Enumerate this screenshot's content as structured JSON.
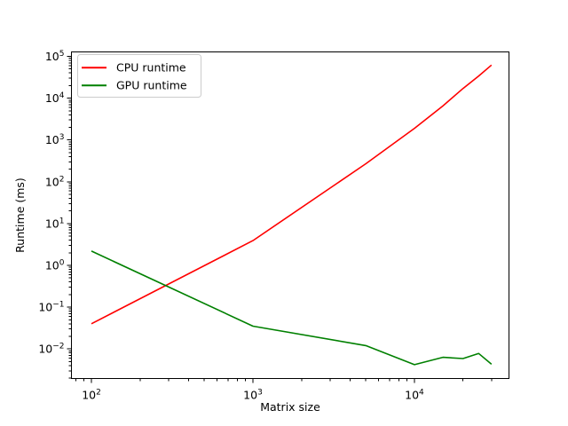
{
  "chart_data": {
    "type": "line",
    "title": "",
    "xlabel": "Matrix size",
    "ylabel": "Runtime (ms)",
    "x_scale": "log",
    "y_scale": "log",
    "xlim": [
      75.2,
      38500
    ],
    "ylim": [
      0.00196,
      127700
    ],
    "grid": false,
    "x": [
      100,
      1000,
      5000,
      10000,
      15000,
      20000,
      25000,
      30000
    ],
    "series": [
      {
        "name": "CPU runtime",
        "color": "#ff0000",
        "values": [
          0.04,
          3.9,
          270,
          1900,
          6500,
          17000,
          34000,
          62000
        ]
      },
      {
        "name": "GPU runtime",
        "color": "#008000",
        "values": [
          2.2,
          0.035,
          0.012,
          0.0042,
          0.0063,
          0.0059,
          0.0078,
          0.0043
        ]
      }
    ],
    "x_ticks": [
      {
        "value": 100,
        "base": "10",
        "exponent": "2"
      },
      {
        "value": 1000,
        "base": "10",
        "exponent": "3"
      },
      {
        "value": 10000,
        "base": "10",
        "exponent": "4"
      }
    ],
    "y_ticks": [
      {
        "value": 0.01,
        "base": "10",
        "exponent": "−2"
      },
      {
        "value": 0.1,
        "base": "10",
        "exponent": "−1"
      },
      {
        "value": 1,
        "base": "10",
        "exponent": "0"
      },
      {
        "value": 10,
        "base": "10",
        "exponent": "1"
      },
      {
        "value": 100,
        "base": "10",
        "exponent": "2"
      },
      {
        "value": 1000,
        "base": "10",
        "exponent": "3"
      },
      {
        "value": 10000,
        "base": "10",
        "exponent": "4"
      },
      {
        "value": 100000,
        "base": "10",
        "exponent": "5"
      }
    ],
    "legend": {
      "position": "upper left",
      "border_color": "#cccccc",
      "entries": [
        "CPU runtime",
        "GPU runtime"
      ]
    }
  }
}
